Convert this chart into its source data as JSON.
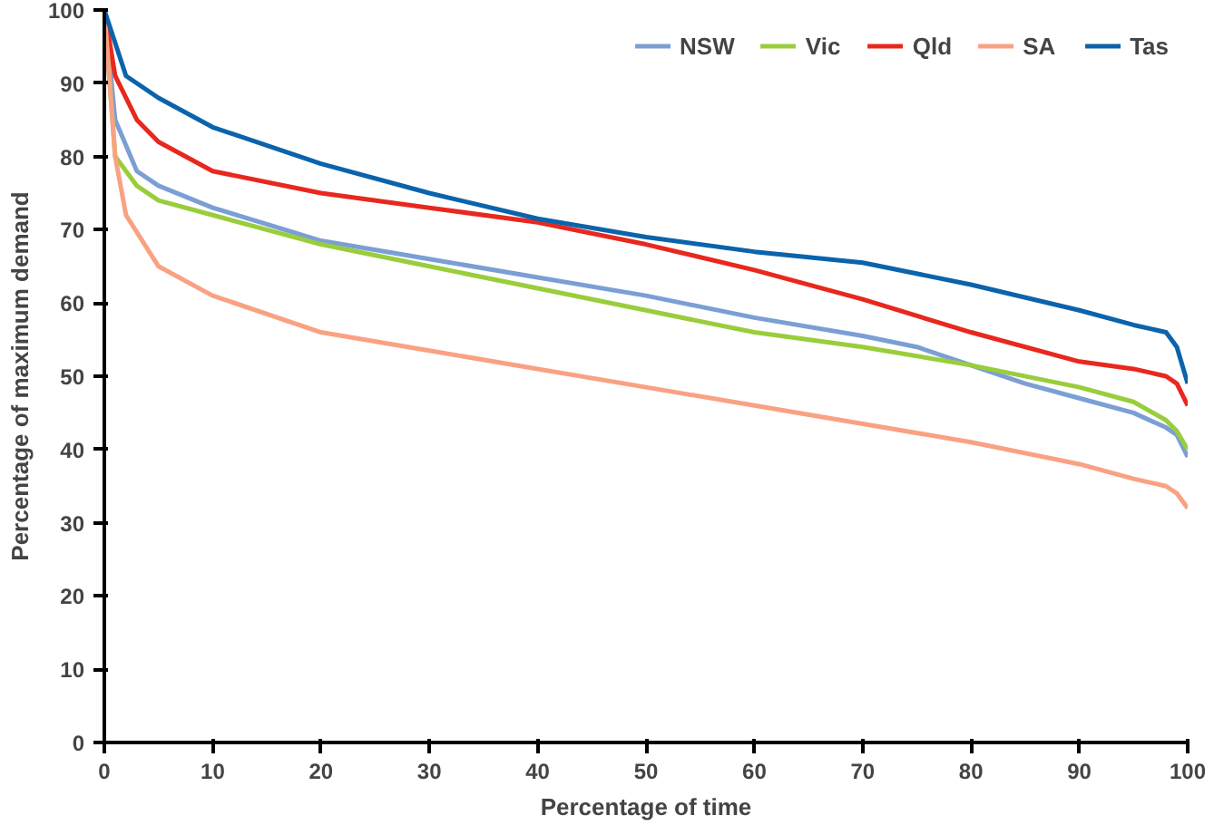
{
  "chart_data": {
    "type": "line",
    "xlabel": "Percentage of time",
    "ylabel": "Percentage of maximum demand",
    "xlim": [
      0,
      100
    ],
    "ylim": [
      0,
      100
    ],
    "xticks": [
      0,
      10,
      20,
      30,
      40,
      50,
      60,
      70,
      80,
      90,
      100
    ],
    "yticks": [
      0,
      10,
      20,
      30,
      40,
      50,
      60,
      70,
      80,
      90,
      100
    ],
    "grid": false,
    "legend": "top right",
    "line_style": "solid",
    "series": [
      {
        "name": "NSW",
        "color": "#7b9fd4",
        "x": [
          0,
          1,
          3,
          5,
          10,
          20,
          30,
          40,
          50,
          60,
          70,
          75,
          80,
          85,
          90,
          95,
          98,
          99,
          100
        ],
        "values": [
          100,
          85,
          78,
          76,
          73,
          68.5,
          66,
          63.5,
          61,
          58,
          55.5,
          54,
          51.5,
          49,
          47,
          45,
          43,
          42,
          39
        ]
      },
      {
        "name": "Vic",
        "color": "#9acd3c",
        "x": [
          0,
          1,
          3,
          5,
          10,
          20,
          30,
          40,
          50,
          60,
          70,
          80,
          90,
          95,
          98,
          99,
          100
        ],
        "values": [
          100,
          80,
          76,
          74,
          72,
          68,
          65,
          62,
          59,
          56,
          54,
          51.5,
          48.5,
          46.5,
          44,
          42.5,
          40
        ]
      },
      {
        "name": "Qld",
        "color": "#e8281e",
        "x": [
          0,
          1,
          3,
          5,
          10,
          20,
          30,
          40,
          50,
          60,
          70,
          80,
          90,
          95,
          98,
          99,
          100
        ],
        "values": [
          100,
          91,
          85,
          82,
          78,
          75,
          73,
          71,
          68,
          64.5,
          60.5,
          56,
          52,
          51,
          50,
          49,
          46
        ]
      },
      {
        "name": "SA",
        "color": "#f9a283",
        "x": [
          0,
          1,
          2,
          5,
          10,
          20,
          30,
          40,
          50,
          60,
          70,
          80,
          90,
          95,
          98,
          99,
          100
        ],
        "values": [
          100,
          80,
          72,
          65,
          61,
          56,
          53.5,
          51,
          48.5,
          46,
          43.5,
          41,
          38,
          36,
          35,
          34,
          32
        ]
      },
      {
        "name": "Tas",
        "color": "#0b63ab",
        "x": [
          0,
          2,
          5,
          10,
          20,
          30,
          40,
          50,
          60,
          70,
          80,
          90,
          95,
          98,
          99,
          100
        ],
        "values": [
          100,
          91,
          88,
          84,
          79,
          75,
          71.5,
          69,
          67,
          65.5,
          62.5,
          59,
          57,
          56,
          54,
          49
        ]
      }
    ]
  }
}
